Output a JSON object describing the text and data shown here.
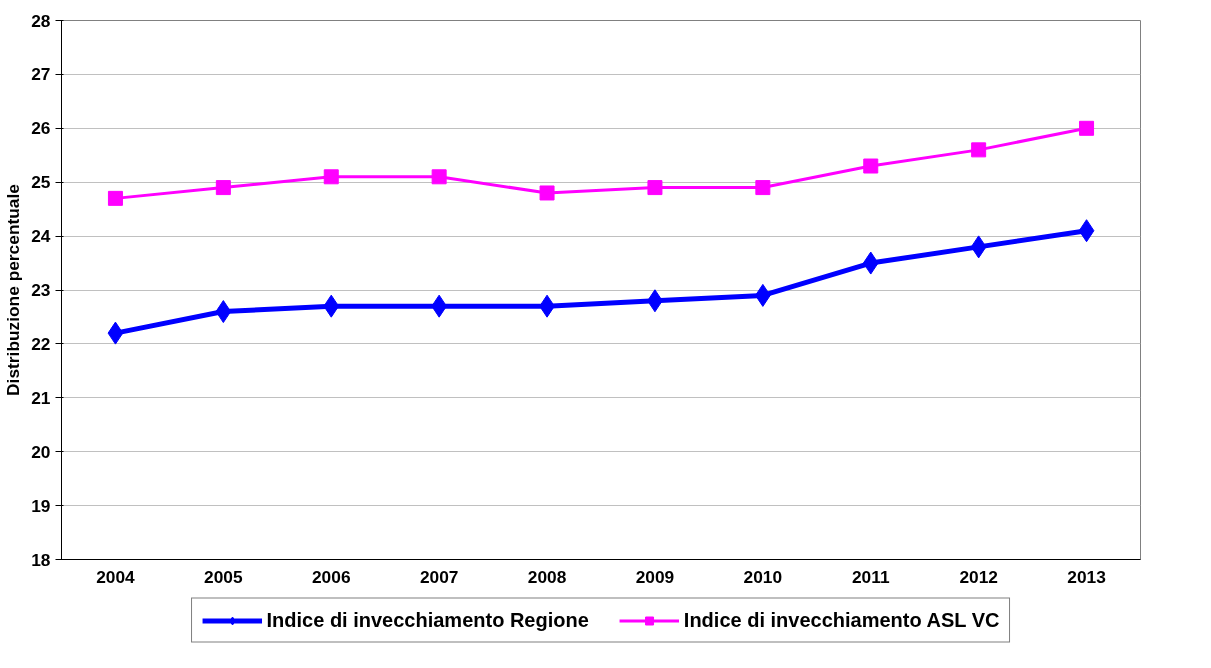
{
  "chart_data": {
    "type": "line",
    "ylabel": "Distribuzione percentuale",
    "categories": [
      "2004",
      "2005",
      "2006",
      "2007",
      "2008",
      "2009",
      "2010",
      "2011",
      "2012",
      "2013"
    ],
    "series": [
      {
        "name": "Indice di invecchiamento Regione",
        "color": "#0000ff",
        "marker": "diamond",
        "values": [
          22.2,
          22.6,
          22.7,
          22.7,
          22.7,
          22.8,
          22.9,
          23.5,
          23.8,
          24.1
        ]
      },
      {
        "name": "Indice di invecchiamento ASL VC",
        "color": "#ff00ff",
        "marker": "square",
        "values": [
          24.7,
          24.9,
          25.1,
          25.1,
          24.8,
          24.9,
          24.9,
          25.3,
          25.6,
          26.0
        ]
      }
    ],
    "ylim": [
      18,
      28
    ],
    "yticks": [
      18,
      19,
      20,
      21,
      22,
      23,
      24,
      25,
      26,
      27,
      28
    ],
    "grid": "y",
    "legend": "bottom",
    "line_style": "solid"
  }
}
